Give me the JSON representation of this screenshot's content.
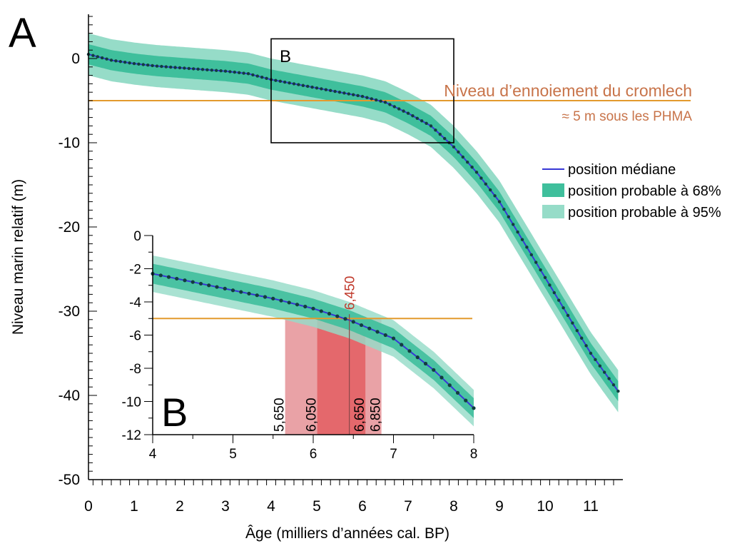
{
  "colors": {
    "band95": "#96dcc8",
    "band68": "#3fbf9c",
    "median": "#3737d6",
    "marker": "#123d3f",
    "threshold": "#e39a2d",
    "annotation": "#c8744a",
    "range_outer": "#e9a2a6",
    "range_inner": "#e4686c",
    "median_age_label": "#c0392b"
  },
  "chart_data": [
    {
      "panel": "A",
      "type": "area",
      "xlabel": "Âge (milliers d’années cal. BP)",
      "ylabel": "Niveau marin relatif (m)",
      "xlim": [
        -0.2,
        11.7
      ],
      "ylim": [
        -50,
        5
      ],
      "xticks": [
        "0",
        "1",
        "2",
        "3",
        "4",
        "5",
        "6",
        "7",
        "8",
        "9",
        "10",
        "11"
      ],
      "yticks": [
        "0",
        "-10",
        "-20",
        "-30",
        "-40",
        "-50"
      ],
      "series": [
        {
          "name": "position médiane",
          "x": [
            0,
            0.5,
            1,
            1.5,
            2,
            2.5,
            3,
            3.5,
            4,
            4.5,
            5,
            5.5,
            6,
            6.5,
            7,
            7.5,
            8,
            8.5,
            9,
            9.5,
            10,
            10.5,
            11,
            11.6
          ],
          "values": [
            0.5,
            -0.2,
            -0.6,
            -0.9,
            -1.1,
            -1.3,
            -1.5,
            -1.8,
            -2.5,
            -3.0,
            -3.5,
            -4.0,
            -4.5,
            -5.2,
            -6.5,
            -8.0,
            -10.5,
            -13.5,
            -17.0,
            -21.5,
            -26.0,
            -30.5,
            -35.0,
            -39.5
          ],
          "band68": 1.2,
          "band95": 2.5
        },
        {
          "name": "position probable à 68%"
        },
        {
          "name": "position probable à 95%"
        }
      ],
      "threshold_y": -5,
      "zoom_box": {
        "label": "B",
        "x": [
          4,
          8
        ],
        "y": [
          -10,
          2
        ]
      },
      "annotations": [
        "Niveau d’ennoiement du cromlech",
        "≈ 5 m sous les PHMA"
      ]
    },
    {
      "panel": "B",
      "type": "area",
      "xlim": [
        4,
        8
      ],
      "ylim": [
        -12,
        0
      ],
      "xticks": [
        "4",
        "5",
        "6",
        "7",
        "8"
      ],
      "yticks": [
        "0",
        "-2",
        "-4",
        "-6",
        "-8",
        "-10",
        "-12"
      ],
      "series": [
        {
          "name": "position médiane",
          "x": [
            4.0,
            4.5,
            5.0,
            5.5,
            6.0,
            6.45,
            7.0,
            7.5,
            8.0
          ],
          "values": [
            -2.3,
            -2.8,
            -3.3,
            -3.8,
            -4.4,
            -5.1,
            -6.2,
            -8.1,
            -10.4
          ],
          "band68": 0.6,
          "band95": 1.1
        }
      ],
      "threshold_y": -5,
      "ranges": [
        {
          "from": 5.65,
          "to": 6.85,
          "level": "95%"
        },
        {
          "from": 6.05,
          "to": 6.65,
          "level": "68%"
        }
      ],
      "median_age": 6.45,
      "range_labels": [
        "5,650",
        "6,050",
        "6,650",
        "6,850"
      ],
      "median_age_label": "6,450"
    }
  ],
  "figure": {
    "panel_a_letter": "A",
    "panel_b_letter": "B",
    "zoom_box_label": "B",
    "annotation_line1": "Niveau d’ennoiement du cromlech",
    "annotation_line2": "≈ 5 m sous les PHMA",
    "legend": [
      "position médiane",
      "position probable à 68%",
      "position probable à 95%"
    ],
    "xlabel": "Âge (milliers d’années cal. BP)",
    "ylabel": "Niveau marin relatif (m)"
  }
}
